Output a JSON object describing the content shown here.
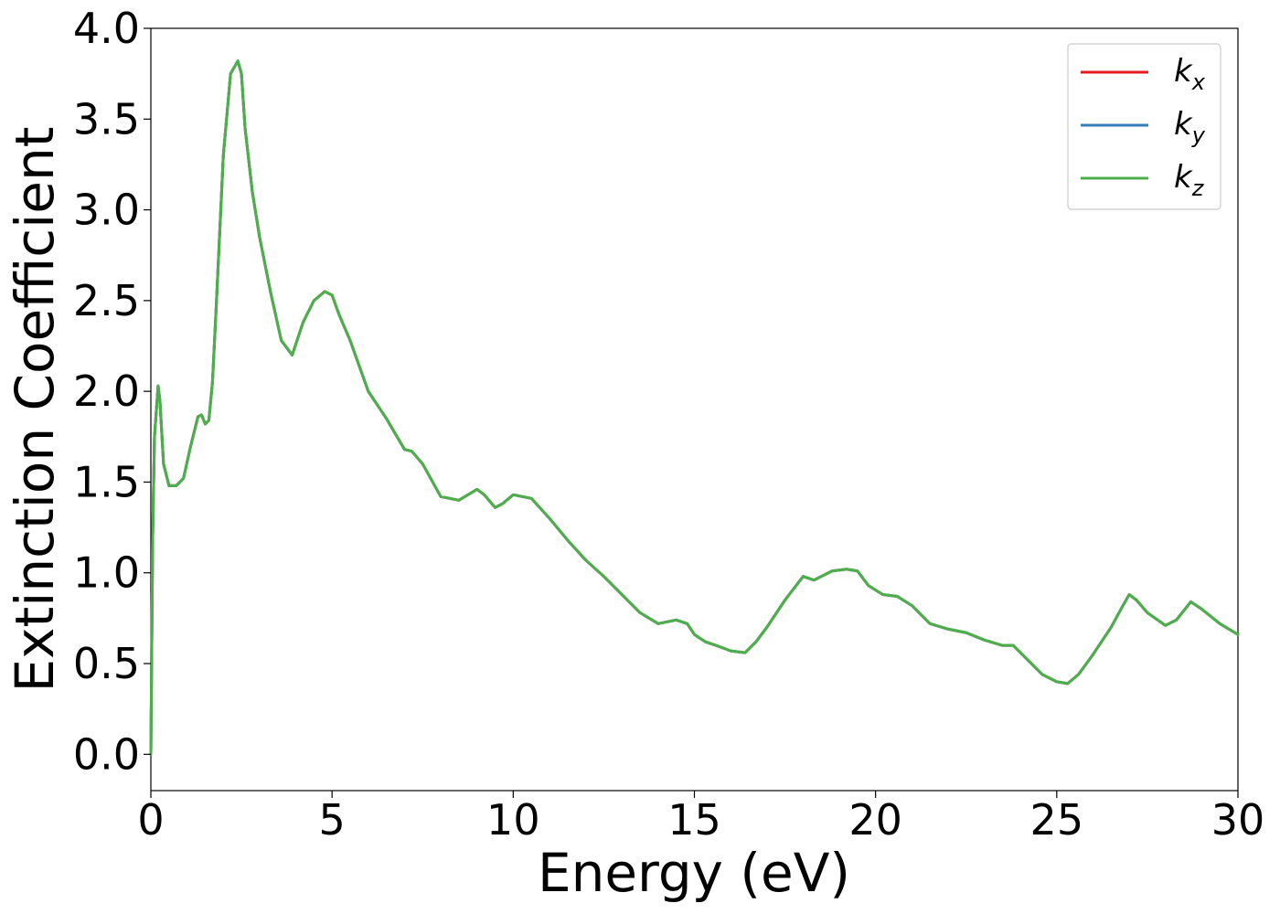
{
  "chart_data": {
    "type": "line",
    "xlabel": "Energy (eV)",
    "ylabel": "Extinction Coefficient",
    "xlim": [
      0,
      30
    ],
    "ylim": [
      -0.2,
      4.0
    ],
    "xticks": [
      "0",
      "5",
      "10",
      "15",
      "20",
      "25",
      "30"
    ],
    "yticks": [
      "0.0",
      "0.5",
      "1.0",
      "1.5",
      "2.0",
      "2.5",
      "3.0",
      "3.5",
      "4.0"
    ],
    "grid": false,
    "legend_position": "top-right",
    "x": [
      0,
      0.05,
      0.1,
      0.2,
      0.25,
      0.35,
      0.5,
      0.7,
      0.9,
      1.1,
      1.3,
      1.4,
      1.5,
      1.6,
      1.7,
      1.8,
      2.0,
      2.2,
      2.4,
      2.5,
      2.6,
      2.8,
      3.0,
      3.3,
      3.6,
      3.9,
      4.2,
      4.5,
      4.8,
      5.0,
      5.2,
      5.5,
      6.0,
      6.5,
      7.0,
      7.2,
      7.5,
      8.0,
      8.5,
      9.0,
      9.2,
      9.5,
      9.7,
      10.0,
      10.5,
      11.0,
      11.5,
      12.0,
      12.5,
      13.0,
      13.5,
      14.0,
      14.5,
      14.8,
      15.0,
      15.3,
      15.6,
      16.0,
      16.4,
      16.7,
      17.0,
      17.5,
      18.0,
      18.3,
      18.5,
      18.8,
      19.2,
      19.5,
      19.8,
      20.2,
      20.6,
      21.0,
      21.5,
      22.0,
      22.5,
      23.0,
      23.5,
      23.8,
      24.2,
      24.6,
      25.0,
      25.3,
      25.6,
      26.0,
      26.5,
      26.8,
      27.0,
      27.2,
      27.5,
      28.0,
      28.3,
      28.7,
      29.0,
      29.5,
      30.0
    ],
    "series": [
      {
        "name": "k_x",
        "label_base": "k",
        "label_sub": "x",
        "color": "#e41a1c",
        "values": [
          0.0,
          1.2,
          1.75,
          2.03,
          1.95,
          1.6,
          1.48,
          1.48,
          1.52,
          1.7,
          1.86,
          1.87,
          1.82,
          1.84,
          2.05,
          2.45,
          3.3,
          3.75,
          3.82,
          3.75,
          3.45,
          3.1,
          2.85,
          2.55,
          2.28,
          2.2,
          2.38,
          2.5,
          2.55,
          2.53,
          2.42,
          2.28,
          2.0,
          1.85,
          1.68,
          1.67,
          1.6,
          1.42,
          1.4,
          1.46,
          1.43,
          1.36,
          1.38,
          1.43,
          1.41,
          1.3,
          1.18,
          1.07,
          0.98,
          0.88,
          0.78,
          0.72,
          0.74,
          0.72,
          0.66,
          0.62,
          0.6,
          0.57,
          0.56,
          0.62,
          0.7,
          0.85,
          0.98,
          0.96,
          0.98,
          1.01,
          1.02,
          1.01,
          0.93,
          0.88,
          0.87,
          0.82,
          0.72,
          0.69,
          0.67,
          0.63,
          0.6,
          0.6,
          0.52,
          0.44,
          0.4,
          0.39,
          0.44,
          0.55,
          0.7,
          0.81,
          0.88,
          0.85,
          0.78,
          0.71,
          0.74,
          0.84,
          0.8,
          0.72,
          0.66
        ]
      },
      {
        "name": "k_y",
        "label_base": "k",
        "label_sub": "y",
        "color": "#377eb8",
        "values": [
          0.0,
          1.2,
          1.75,
          2.03,
          1.95,
          1.6,
          1.48,
          1.48,
          1.52,
          1.7,
          1.86,
          1.87,
          1.82,
          1.84,
          2.05,
          2.45,
          3.3,
          3.75,
          3.82,
          3.75,
          3.45,
          3.1,
          2.85,
          2.55,
          2.28,
          2.2,
          2.38,
          2.5,
          2.55,
          2.53,
          2.42,
          2.28,
          2.0,
          1.85,
          1.68,
          1.67,
          1.6,
          1.42,
          1.4,
          1.46,
          1.43,
          1.36,
          1.38,
          1.43,
          1.41,
          1.3,
          1.18,
          1.07,
          0.98,
          0.88,
          0.78,
          0.72,
          0.74,
          0.72,
          0.66,
          0.62,
          0.6,
          0.57,
          0.56,
          0.62,
          0.7,
          0.85,
          0.98,
          0.96,
          0.98,
          1.01,
          1.02,
          1.01,
          0.93,
          0.88,
          0.87,
          0.82,
          0.72,
          0.69,
          0.67,
          0.63,
          0.6,
          0.6,
          0.52,
          0.44,
          0.4,
          0.39,
          0.44,
          0.55,
          0.7,
          0.81,
          0.88,
          0.85,
          0.78,
          0.71,
          0.74,
          0.84,
          0.8,
          0.72,
          0.66
        ]
      },
      {
        "name": "k_z",
        "label_base": "k",
        "label_sub": "z",
        "color": "#4daf4a",
        "values": [
          0.0,
          1.2,
          1.75,
          2.03,
          1.95,
          1.6,
          1.48,
          1.48,
          1.52,
          1.7,
          1.86,
          1.87,
          1.82,
          1.84,
          2.05,
          2.45,
          3.3,
          3.75,
          3.82,
          3.75,
          3.45,
          3.1,
          2.85,
          2.55,
          2.28,
          2.2,
          2.38,
          2.5,
          2.55,
          2.53,
          2.42,
          2.28,
          2.0,
          1.85,
          1.68,
          1.67,
          1.6,
          1.42,
          1.4,
          1.46,
          1.43,
          1.36,
          1.38,
          1.43,
          1.41,
          1.3,
          1.18,
          1.07,
          0.98,
          0.88,
          0.78,
          0.72,
          0.74,
          0.72,
          0.66,
          0.62,
          0.6,
          0.57,
          0.56,
          0.62,
          0.7,
          0.85,
          0.98,
          0.96,
          0.98,
          1.01,
          1.02,
          1.01,
          0.93,
          0.88,
          0.87,
          0.82,
          0.72,
          0.69,
          0.67,
          0.63,
          0.6,
          0.6,
          0.52,
          0.44,
          0.4,
          0.39,
          0.44,
          0.55,
          0.7,
          0.81,
          0.88,
          0.85,
          0.78,
          0.71,
          0.74,
          0.84,
          0.8,
          0.72,
          0.66
        ]
      }
    ]
  }
}
